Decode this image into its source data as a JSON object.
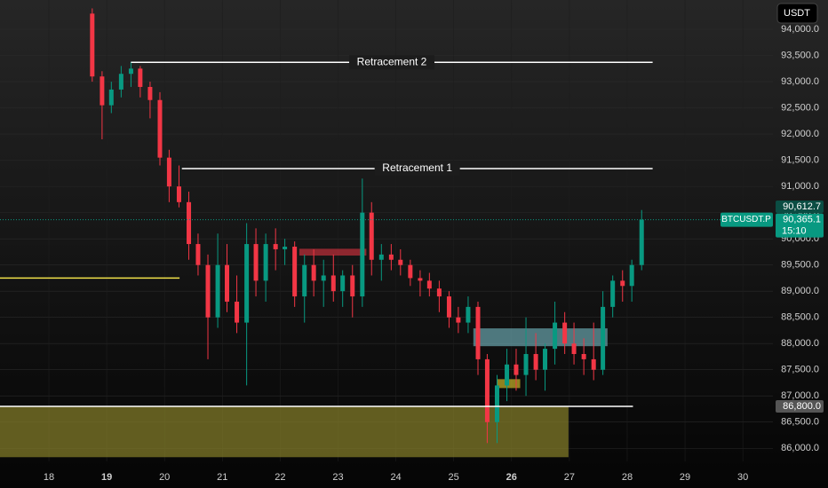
{
  "chart_data": {
    "type": "candlestick",
    "currency": "USDT",
    "symbol": "BTCUSDT.P",
    "up_color": "#089981",
    "down_color": "#f23645",
    "grid": true,
    "xlim": [
      17.155,
      30.52
    ],
    "ylim": [
      85750,
      94560
    ],
    "xticks": [
      18,
      19,
      20,
      21,
      22,
      23,
      24,
      25,
      26,
      27,
      28,
      29,
      30
    ],
    "bold_xticks": [
      19,
      26
    ],
    "yticks": [
      {
        "value": 86000,
        "label": "86,000.0"
      },
      {
        "value": 86500,
        "label": "86,500.0"
      },
      {
        "value": 87000,
        "label": "87,000.0"
      },
      {
        "value": 87500,
        "label": "87,500.0"
      },
      {
        "value": 88000,
        "label": "88,000.0"
      },
      {
        "value": 88500,
        "label": "88,500.0"
      },
      {
        "value": 89000,
        "label": "89,000.0"
      },
      {
        "value": 89500,
        "label": "89,500.0"
      },
      {
        "value": 90000,
        "label": "90,000.0"
      },
      {
        "value": 90500,
        "label": "90,500.0"
      },
      {
        "value": 91000,
        "label": "91,000.0"
      },
      {
        "value": 91500,
        "label": "91,500.0"
      },
      {
        "value": 92000,
        "label": "92,000.0"
      },
      {
        "value": 92500,
        "label": "92,500.0"
      },
      {
        "value": 93000,
        "label": "93,000.0"
      },
      {
        "value": 93500,
        "label": "93,500.0"
      },
      {
        "value": 94000,
        "label": "94,000.0"
      }
    ],
    "x": [
      18.75,
      18.92,
      19.08,
      19.25,
      19.42,
      19.58,
      19.75,
      19.92,
      20.08,
      20.25,
      20.42,
      20.58,
      20.75,
      20.92,
      21.08,
      21.25,
      21.42,
      21.58,
      21.75,
      21.92,
      22.08,
      22.25,
      22.42,
      22.58,
      22.75,
      22.92,
      23.08,
      23.25,
      23.42,
      23.58,
      23.75,
      23.92,
      24.08,
      24.25,
      24.42,
      24.58,
      24.75,
      24.92,
      25.08,
      25.25,
      25.42,
      25.58,
      25.75,
      25.92,
      26.08,
      26.25,
      26.42,
      26.58,
      26.75,
      26.92,
      27.08,
      27.25,
      27.42,
      27.58,
      27.75,
      27.92,
      28.08,
      28.25
    ],
    "open": [
      94300,
      93100,
      92550,
      92850,
      93150,
      93250,
      92900,
      92650,
      91550,
      91000,
      90700,
      89900,
      89500,
      88500,
      89500,
      88800,
      88400,
      89900,
      89200,
      89900,
      89800,
      89850,
      88900,
      89500,
      89200,
      89300,
      89000,
      89300,
      88900,
      90500,
      89600,
      89700,
      89600,
      89500,
      89250,
      89200,
      89050,
      88900,
      88500,
      88400,
      88700,
      87700,
      86500,
      87200,
      87600,
      87400,
      87800,
      87500,
      87900,
      88400,
      88000,
      87800,
      87700,
      87500,
      88700,
      89200,
      89100,
      89500
    ],
    "high": [
      94400,
      93200,
      93000,
      93300,
      93380,
      93300,
      93000,
      92800,
      91700,
      91400,
      90900,
      90100,
      89700,
      90100,
      89900,
      89300,
      90300,
      90200,
      90100,
      90200,
      90000,
      89950,
      89700,
      89800,
      89600,
      89700,
      89400,
      89500,
      91150,
      90700,
      89900,
      89900,
      89800,
      89600,
      89400,
      89350,
      89200,
      89000,
      88700,
      88900,
      88800,
      87800,
      87400,
      87900,
      87900,
      88500,
      88200,
      88000,
      88800,
      88600,
      88400,
      88100,
      88400,
      89000,
      89300,
      89400,
      89600,
      90550
    ],
    "low": [
      93000,
      91900,
      92400,
      92700,
      92900,
      92700,
      92300,
      91400,
      90700,
      90600,
      89600,
      89300,
      87700,
      88300,
      88600,
      88200,
      87200,
      88900,
      88800,
      89400,
      89500,
      88700,
      88400,
      88900,
      88700,
      88800,
      88700,
      88500,
      88700,
      89300,
      89200,
      89400,
      89300,
      89100,
      88900,
      88900,
      88600,
      88300,
      88200,
      88200,
      87400,
      86100,
      86100,
      86900,
      87100,
      87000,
      87300,
      87100,
      87600,
      87800,
      87600,
      87400,
      87300,
      87400,
      88500,
      88800,
      88800,
      89400
    ],
    "close": [
      93100,
      92550,
      92850,
      93150,
      93250,
      92900,
      92650,
      91550,
      91000,
      90700,
      89900,
      89500,
      88500,
      89500,
      88800,
      88400,
      89900,
      89200,
      89900,
      89800,
      89850,
      88900,
      89500,
      89200,
      89300,
      89000,
      89300,
      88900,
      90500,
      89600,
      89700,
      89600,
      89500,
      89250,
      89200,
      89050,
      88900,
      88500,
      88400,
      88700,
      87700,
      86500,
      87200,
      87600,
      87400,
      87800,
      87500,
      87900,
      88400,
      88000,
      87800,
      87700,
      87500,
      88700,
      89200,
      89100,
      89500,
      90365
    ],
    "lines": [
      {
        "label": "Retracement 2",
        "y": 93370,
        "x1": 19.42,
        "x2": 28.44,
        "color": "#ffffff"
      },
      {
        "label": "Retracement  1",
        "y": 91340,
        "x1": 20.3,
        "x2": 28.44,
        "color": "#ffffff"
      },
      {
        "y": 89250,
        "x1": 17.155,
        "x2": 20.26,
        "color": "#f2e24a"
      },
      {
        "y": 86800,
        "x1": 17.155,
        "x2": 28.1,
        "color": "#ffffff",
        "price_label": "86,800.0"
      }
    ],
    "zones": [
      {
        "y1": 86800,
        "y2": 85830,
        "x1": 17.155,
        "x2": 26.985,
        "color": "rgba(128,122,40,0.75)"
      },
      {
        "y1": 89810,
        "y2": 89680,
        "x1": 22.33,
        "x2": 23.49,
        "color": "rgba(242,54,69,0.55)"
      },
      {
        "y1": 88290,
        "y2": 87950,
        "x1": 25.34,
        "x2": 27.66,
        "color": "rgba(120,190,200,0.6)"
      },
      {
        "y1": 87320,
        "y2": 87150,
        "x1": 25.75,
        "x2": 26.15,
        "color": "rgba(200,180,40,0.7)"
      }
    ],
    "high_price": {
      "value": 90612.7,
      "label": "90,612.7"
    },
    "last_price": {
      "value": 90365.1,
      "label": "90,365.1"
    },
    "countdown": "15:10"
  }
}
